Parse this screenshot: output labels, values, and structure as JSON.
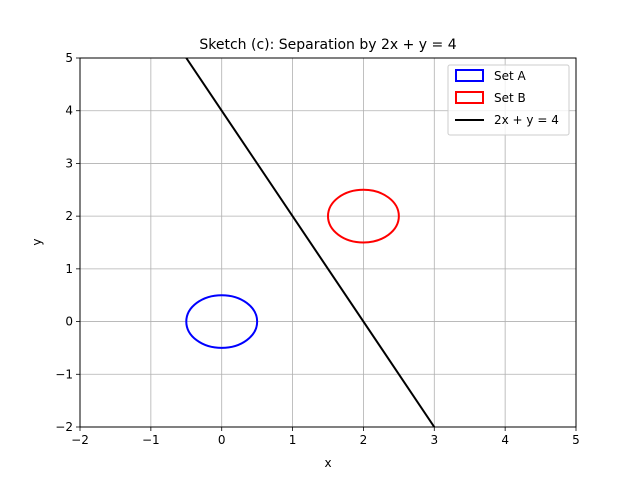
{
  "chart_data": {
    "type": "line",
    "title": "Sketch (c): Separation by 2x + y = 4",
    "xlabel": "x",
    "ylabel": "y",
    "xlim": [
      -2,
      5
    ],
    "ylim": [
      -2,
      5
    ],
    "xticks": [
      -2,
      -1,
      0,
      1,
      2,
      3,
      4,
      5
    ],
    "yticks": [
      -2,
      -1,
      0,
      1,
      2,
      3,
      4,
      5
    ],
    "xtick_labels": [
      "−2",
      "−1",
      "0",
      "1",
      "2",
      "3",
      "4",
      "5"
    ],
    "ytick_labels": [
      "−2",
      "−1",
      "0",
      "1",
      "2",
      "3",
      "4",
      "5"
    ],
    "grid": true,
    "legend_position": "top-right",
    "series": [
      {
        "name": "Set A",
        "kind": "circle",
        "center": [
          0,
          0
        ],
        "radius": 0.5,
        "color": "#0000ff"
      },
      {
        "name": "Set B",
        "kind": "circle",
        "center": [
          2,
          2
        ],
        "radius": 0.5,
        "color": "#ff0000"
      },
      {
        "name": "2x + y = 4",
        "kind": "line",
        "x": [
          -0.5,
          3
        ],
        "y": [
          5,
          -2
        ],
        "color": "#000000"
      }
    ]
  }
}
